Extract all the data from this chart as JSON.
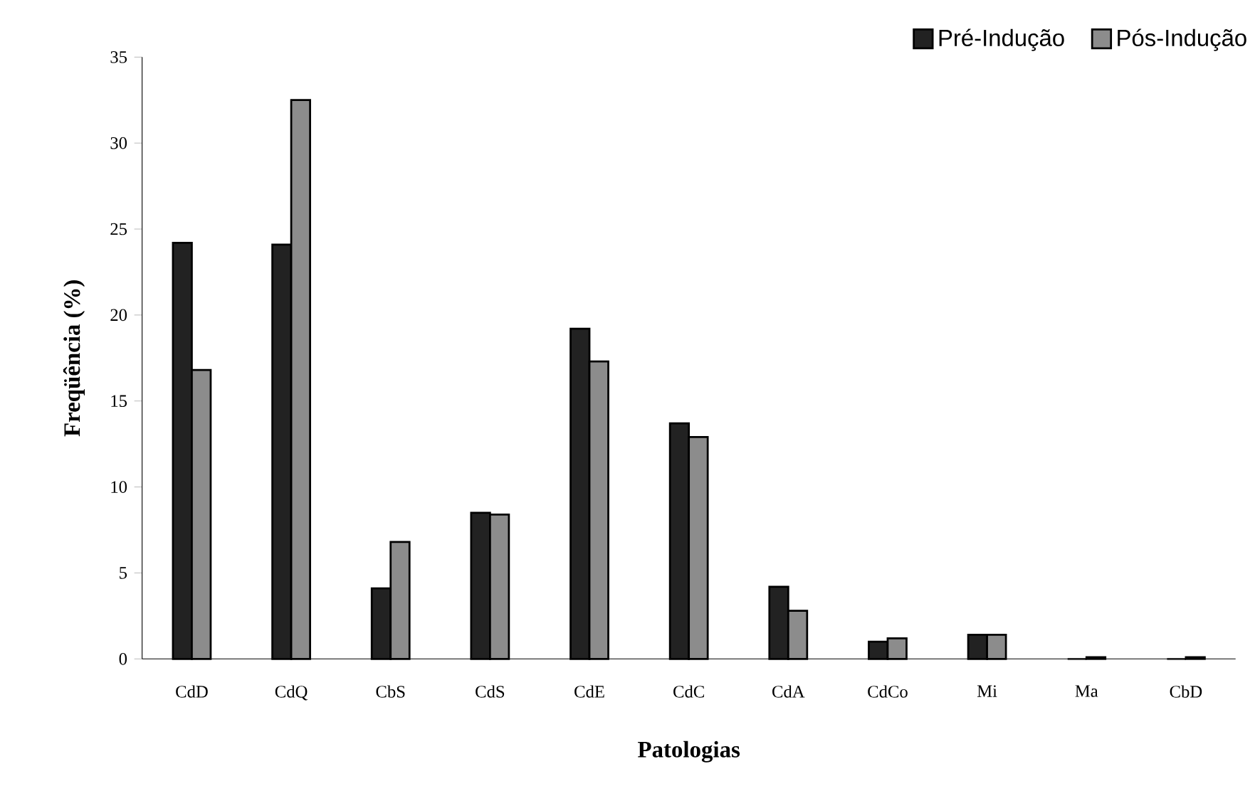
{
  "chart_data": {
    "type": "bar",
    "xlabel": "Patologias",
    "ylabel": "Freqüência (%)",
    "categories": [
      "CdD",
      "CdQ",
      "CbS",
      "CdS",
      "CdE",
      "CdC",
      "CdA",
      "CdCo",
      "Mi",
      "Ma",
      "CbD"
    ],
    "series": [
      {
        "name": "Pré-Indução",
        "color": "#222222",
        "values": [
          24.2,
          24.1,
          4.1,
          8.5,
          19.2,
          13.7,
          4.2,
          1.0,
          1.4,
          0,
          0
        ]
      },
      {
        "name": "Pós-Indução",
        "color": "#8c8c8c",
        "values": [
          16.8,
          32.5,
          6.8,
          8.4,
          17.3,
          12.9,
          2.8,
          1.2,
          1.4,
          0.1,
          0.1
        ]
      }
    ],
    "ylim": [
      0,
      35
    ],
    "yticks": [
      0,
      5,
      10,
      15,
      20,
      25,
      30,
      35
    ],
    "grid": false,
    "legend": "top right"
  }
}
